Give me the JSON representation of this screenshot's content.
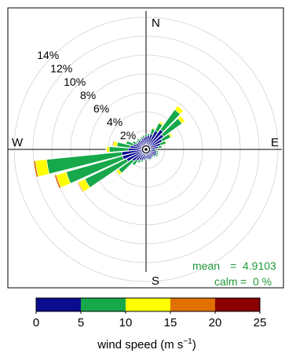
{
  "chart_data": {
    "type": "windrose",
    "directions_deg": [
      0,
      10,
      20,
      30,
      40,
      50,
      60,
      70,
      80,
      90,
      100,
      110,
      120,
      130,
      140,
      150,
      160,
      170,
      180,
      190,
      200,
      210,
      220,
      230,
      240,
      250,
      260,
      270,
      280,
      290,
      300,
      310,
      320,
      330,
      340,
      350
    ],
    "speed_bins": [
      {
        "label": "0-5",
        "color": "#0b0b8f"
      },
      {
        "label": "5-10",
        "color": "#16a84a"
      },
      {
        "label": "10-15",
        "color": "#ffff00"
      },
      {
        "label": "15-20",
        "color": "#e07000"
      },
      {
        "label": "20-25",
        "color": "#8b0000"
      }
    ],
    "frequencies_percent": [
      [
        1.4,
        0.2,
        0,
        0,
        0
      ],
      [
        1.5,
        0.2,
        0,
        0,
        0
      ],
      [
        1.7,
        0.6,
        0.1,
        0,
        0
      ],
      [
        2.2,
        0.9,
        0.2,
        0,
        0
      ],
      [
        2.6,
        2.6,
        0.5,
        0,
        0
      ],
      [
        2.3,
        2.4,
        0.4,
        0,
        0
      ],
      [
        1.9,
        1.0,
        0.2,
        0,
        0
      ],
      [
        1.6,
        0.6,
        0.1,
        0,
        0
      ],
      [
        1.3,
        0.4,
        0.05,
        0,
        0
      ],
      [
        1.0,
        0.2,
        0,
        0,
        0
      ],
      [
        1.1,
        0.2,
        0,
        0,
        0
      ],
      [
        1.2,
        0.2,
        0,
        0,
        0
      ],
      [
        1.2,
        0.2,
        0,
        0,
        0
      ],
      [
        1.0,
        0.2,
        0,
        0,
        0
      ],
      [
        1.0,
        0.1,
        0,
        0,
        0
      ],
      [
        1.1,
        0.1,
        0,
        0,
        0
      ],
      [
        1.1,
        0.1,
        0,
        0,
        0
      ],
      [
        1.0,
        0.1,
        0,
        0,
        0
      ],
      [
        1.0,
        0.1,
        0,
        0,
        0
      ],
      [
        1.1,
        0.1,
        0,
        0,
        0
      ],
      [
        1.2,
        0.2,
        0,
        0,
        0
      ],
      [
        1.3,
        0.3,
        0,
        0,
        0
      ],
      [
        1.5,
        0.6,
        0.05,
        0,
        0
      ],
      [
        1.8,
        1.8,
        0.3,
        0,
        0
      ],
      [
        2.3,
        4.9,
        0.8,
        0.1,
        0
      ],
      [
        2.6,
        6.2,
        1.1,
        0.2,
        0
      ],
      [
        2.6,
        8.0,
        1.2,
        0.2,
        0
      ],
      [
        1.9,
        2.0,
        0.3,
        0.05,
        0
      ],
      [
        1.7,
        1.4,
        0.4,
        0.1,
        0.05
      ],
      [
        1.4,
        0.8,
        0.1,
        0,
        0
      ],
      [
        1.2,
        0.4,
        0,
        0,
        0
      ],
      [
        1.1,
        0.2,
        0,
        0,
        0
      ],
      [
        1.2,
        0.2,
        0,
        0,
        0
      ],
      [
        1.1,
        0.2,
        0,
        0,
        0
      ],
      [
        1.2,
        0.2,
        0,
        0,
        0
      ],
      [
        1.3,
        0.2,
        0,
        0,
        0
      ]
    ],
    "radial_ticks": [
      2,
      4,
      6,
      8,
      10,
      12,
      14
    ],
    "radial_tick_labels": [
      "2%",
      "4%",
      "6%",
      "8%",
      "10%",
      "12%",
      "14%"
    ],
    "compass_labels": {
      "north": "N",
      "east": "E",
      "south": "S",
      "west": "W"
    },
    "annotations": {
      "mean_label": "mean",
      "mean_value": "4.9103",
      "calm_label": "calm",
      "calm_value": "0 %"
    },
    "legend": {
      "ticks": [
        "0",
        "5",
        "10",
        "15",
        "20",
        "25"
      ],
      "title": "wind speed (m s",
      "title_superscript": "−1",
      "title_close": ")"
    }
  }
}
